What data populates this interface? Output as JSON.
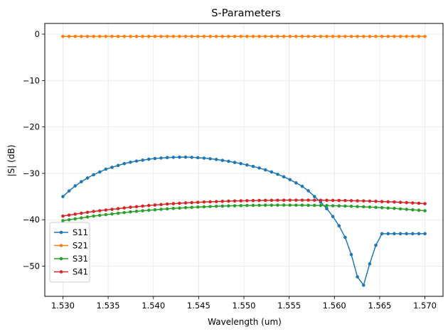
{
  "chart_data": {
    "type": "line",
    "title": "S-Parameters",
    "xlabel": "Wavelength (um)",
    "ylabel": "|S| (dB)",
    "xlim": [
      1.528,
      1.572
    ],
    "ylim": [
      -56.5,
      2.3
    ],
    "xticks": [
      1.53,
      1.535,
      1.54,
      1.545,
      1.55,
      1.555,
      1.56,
      1.565,
      1.57
    ],
    "xtick_labels": [
      "1.530",
      "1.535",
      "1.540",
      "1.545",
      "1.550",
      "1.555",
      "1.560",
      "1.565",
      "1.570"
    ],
    "yticks": [
      0,
      -10,
      -20,
      -30,
      -40,
      -50
    ],
    "ytick_labels": [
      "0",
      "−10",
      "−20",
      "−30",
      "−40",
      "−50"
    ],
    "grid": true,
    "legend_position": "lower-left",
    "x_start": 1.53,
    "x_end": 1.57,
    "n_points": 60,
    "series": [
      {
        "name": "S11",
        "color": "#1f77b4",
        "values": [
          -35.0,
          -33.8,
          -32.7,
          -31.8,
          -31.0,
          -30.3,
          -29.7,
          -29.1,
          -28.7,
          -28.3,
          -27.9,
          -27.6,
          -27.35,
          -27.15,
          -26.95,
          -26.8,
          -26.7,
          -26.6,
          -26.55,
          -26.52,
          -26.5,
          -26.55,
          -26.62,
          -26.72,
          -26.85,
          -27.0,
          -27.2,
          -27.4,
          -27.65,
          -27.9,
          -28.2,
          -28.5,
          -28.85,
          -29.25,
          -29.7,
          -30.2,
          -30.75,
          -31.35,
          -32.05,
          -32.8,
          -33.75,
          -35.0,
          -36.2,
          -37.6,
          -39.3,
          -41.3,
          -43.8,
          -47.5,
          -52.3,
          -54.1,
          -49.5,
          -45.5,
          -43.0,
          -43.0,
          -43.0,
          -43.0,
          -43.0,
          -43.0,
          -43.0,
          -43.0
        ]
      },
      {
        "name": "S21",
        "color": "#ff7f0e",
        "values": [
          -0.5,
          -0.5,
          -0.5,
          -0.5,
          -0.5,
          -0.5,
          -0.5,
          -0.5,
          -0.5,
          -0.5,
          -0.5,
          -0.5,
          -0.5,
          -0.5,
          -0.5,
          -0.5,
          -0.5,
          -0.5,
          -0.5,
          -0.5,
          -0.5,
          -0.5,
          -0.5,
          -0.5,
          -0.5,
          -0.5,
          -0.5,
          -0.5,
          -0.5,
          -0.5,
          -0.5,
          -0.5,
          -0.5,
          -0.5,
          -0.5,
          -0.5,
          -0.5,
          -0.5,
          -0.5,
          -0.5,
          -0.5,
          -0.5,
          -0.5,
          -0.5,
          -0.5,
          -0.5,
          -0.5,
          -0.5,
          -0.5,
          -0.5,
          -0.5,
          -0.5,
          -0.5,
          -0.5,
          -0.5,
          -0.5,
          -0.5,
          -0.5,
          -0.5,
          -0.5
        ]
      },
      {
        "name": "S31",
        "color": "#2ca02c",
        "values": [
          -40.2,
          -40.0,
          -39.8,
          -39.6,
          -39.4,
          -39.2,
          -39.05,
          -38.9,
          -38.75,
          -38.6,
          -38.45,
          -38.3,
          -38.18,
          -38.06,
          -37.95,
          -37.85,
          -37.75,
          -37.65,
          -37.56,
          -37.48,
          -37.4,
          -37.33,
          -37.26,
          -37.2,
          -37.15,
          -37.1,
          -37.05,
          -37.01,
          -36.98,
          -36.95,
          -36.92,
          -36.9,
          -36.88,
          -36.87,
          -36.86,
          -36.85,
          -36.85,
          -36.85,
          -36.86,
          -36.87,
          -36.88,
          -36.9,
          -36.92,
          -36.95,
          -36.98,
          -37.01,
          -37.05,
          -37.1,
          -37.15,
          -37.2,
          -37.26,
          -37.33,
          -37.4,
          -37.48,
          -37.56,
          -37.65,
          -37.75,
          -37.85,
          -37.95,
          -38.05
        ]
      },
      {
        "name": "S41",
        "color": "#d62728",
        "values": [
          -39.2,
          -39.0,
          -38.8,
          -38.6,
          -38.4,
          -38.2,
          -38.05,
          -37.9,
          -37.75,
          -37.6,
          -37.45,
          -37.3,
          -37.18,
          -37.05,
          -36.93,
          -36.82,
          -36.72,
          -36.62,
          -36.53,
          -36.45,
          -36.37,
          -36.3,
          -36.24,
          -36.18,
          -36.13,
          -36.08,
          -36.03,
          -35.99,
          -35.95,
          -35.92,
          -35.89,
          -35.86,
          -35.84,
          -35.82,
          -35.8,
          -35.79,
          -35.78,
          -35.77,
          -35.77,
          -35.77,
          -35.77,
          -35.78,
          -35.79,
          -35.8,
          -35.82,
          -35.84,
          -35.86,
          -35.89,
          -35.92,
          -35.95,
          -35.99,
          -36.03,
          -36.08,
          -36.13,
          -36.18,
          -36.24,
          -36.3,
          -36.37,
          -36.45,
          -36.53
        ]
      }
    ]
  }
}
